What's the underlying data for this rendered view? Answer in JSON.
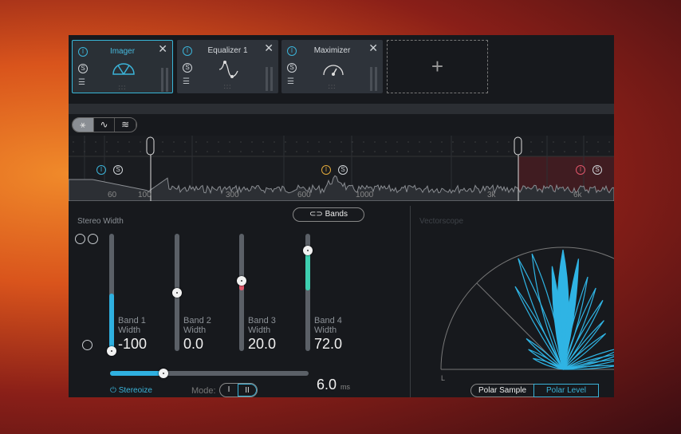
{
  "modules": [
    {
      "title": "Imager",
      "selected": true,
      "icon": "imager-arc-icon"
    },
    {
      "title": "Equalizer 1",
      "selected": false,
      "icon": "eq-curve-icon"
    },
    {
      "title": "Maximizer",
      "selected": false,
      "icon": "gauge-icon"
    }
  ],
  "add_module": "+",
  "view_modes": [
    "imager-icon",
    "sine-icon",
    "waves-icon"
  ],
  "spectrum": {
    "freq_labels": [
      "60",
      "100",
      "300",
      "600",
      "1000",
      "3k",
      "6k"
    ],
    "band_buttons": {
      "solo": "S",
      "power": "I"
    }
  },
  "stereo_width": {
    "title": "Stereo Width",
    "bands_button": "Bands",
    "bands": [
      {
        "name": "Band 1",
        "sub": "Width",
        "value": "-100",
        "level": 0,
        "color": "#2fb0e0"
      },
      {
        "name": "Band 2",
        "sub": "Width",
        "value": "0.0",
        "level": 0.5,
        "color": ""
      },
      {
        "name": "Band 3",
        "sub": "Width",
        "value": "20.0",
        "level": 0.6,
        "color": "#e0566a"
      },
      {
        "name": "Band 4",
        "sub": "Width",
        "value": "72.0",
        "level": 0.86,
        "color": "#3ecfb0"
      }
    ],
    "stereoize_label": "Stereoize",
    "stereoize_level": 0.27,
    "mode_label": "Mode:",
    "mode_options": [
      "I",
      "II"
    ],
    "mode_selected": "II",
    "delay_value": "6.0",
    "delay_unit": "ms"
  },
  "vectorscope": {
    "title": "Vectorscope",
    "left_label": "L",
    "buttons": [
      "Polar Sample",
      "Polar Level"
    ],
    "selected": "Polar Level",
    "color": "#2fb4e4"
  }
}
